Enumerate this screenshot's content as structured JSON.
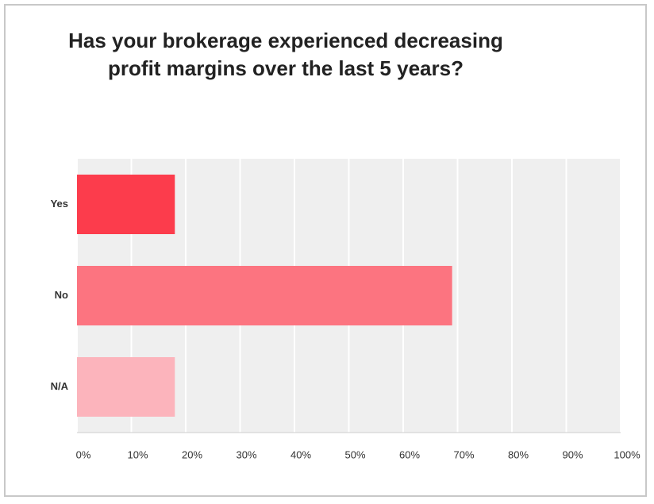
{
  "chart_data": {
    "type": "hbar",
    "title": "Has your brokerage experienced decreasing profit margins over the last 5 years?",
    "categories": [
      "Yes",
      "No",
      "N/A"
    ],
    "values": [
      18,
      69,
      18
    ],
    "colors": [
      "#fc3c4c",
      "#fc7480",
      "#fcb4bc"
    ],
    "xlim": [
      0,
      100
    ],
    "xticks": [
      {
        "value": 0,
        "label": "0%"
      },
      {
        "value": 10,
        "label": "10%"
      },
      {
        "value": 20,
        "label": "20%"
      },
      {
        "value": 30,
        "label": "30%"
      },
      {
        "value": 40,
        "label": "40%"
      },
      {
        "value": 50,
        "label": "50%"
      },
      {
        "value": 60,
        "label": "60%"
      },
      {
        "value": 70,
        "label": "70%"
      },
      {
        "value": 80,
        "label": "80%"
      },
      {
        "value": 90,
        "label": "90%"
      },
      {
        "value": 100,
        "label": "100%"
      }
    ],
    "grid": true
  }
}
